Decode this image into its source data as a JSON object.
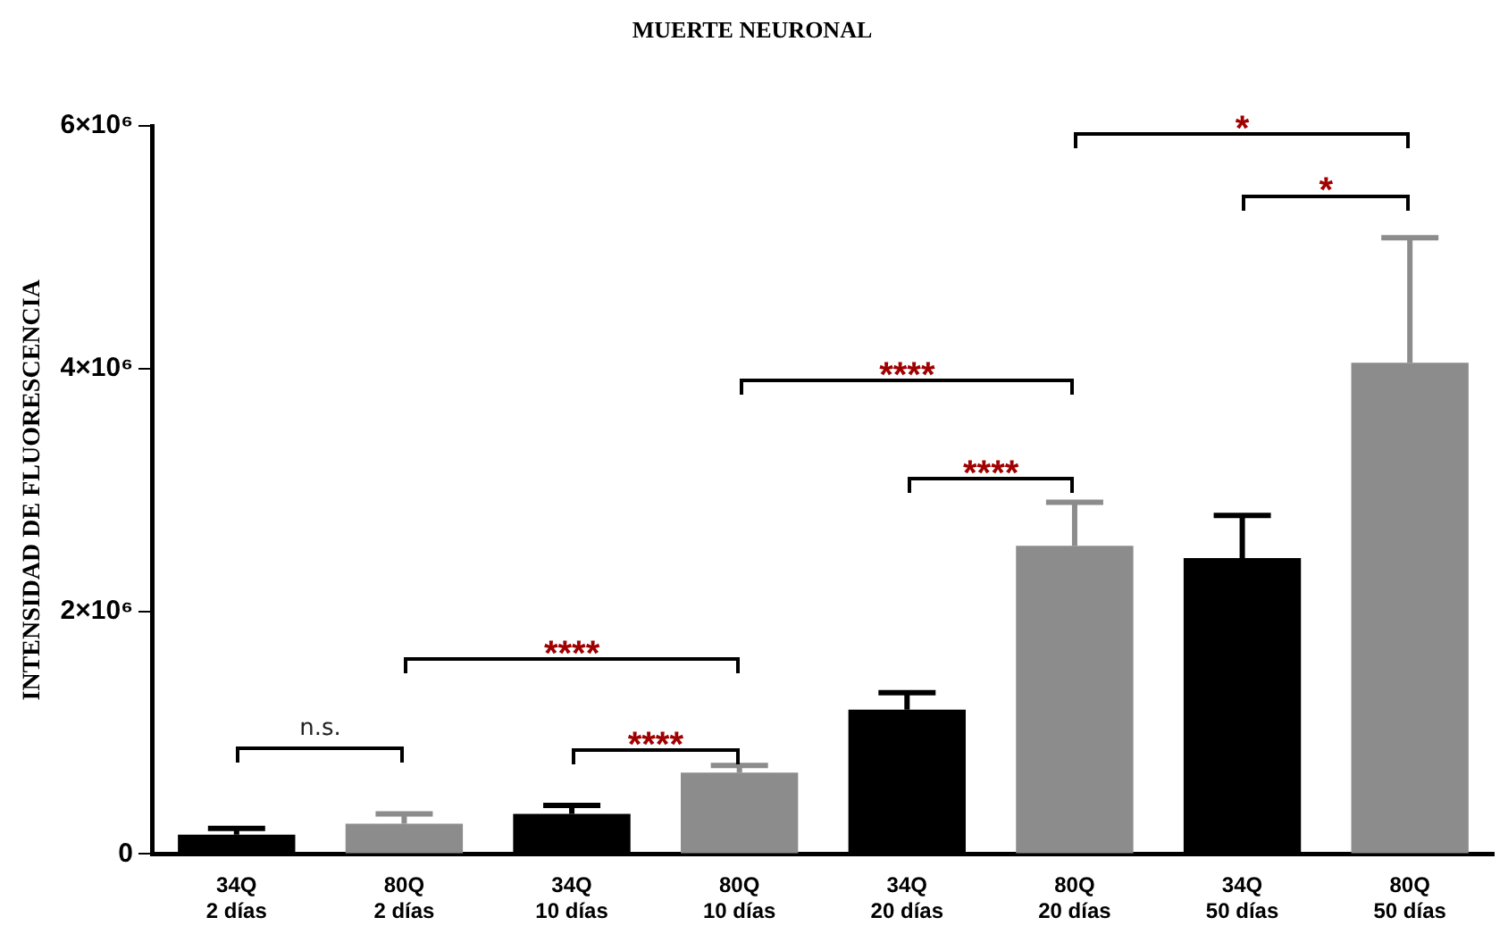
{
  "chart_data": {
    "type": "bar",
    "title": "MUERTE NEURONAL",
    "ylabel": "INTENSIDAD DE FLUORESCENCIA",
    "categories": [
      "34Q\n2 días",
      "80Q\n2 días",
      "34Q\n10 días",
      "80Q\n10 días",
      "34Q\n20 días",
      "80Q\n20 días",
      "34Q\n50 días",
      "80Q\n50 días"
    ],
    "values": [
      160000,
      250000,
      330000,
      670000,
      1190000,
      2540000,
      2440000,
      4050000
    ],
    "errors": [
      [
        160000,
        210000
      ],
      [
        250000,
        330000
      ],
      [
        330000,
        400000
      ],
      [
        670000,
        730000
      ],
      [
        1190000,
        1330000
      ],
      [
        2540000,
        2900000
      ],
      [
        2440000,
        2790000
      ],
      [
        4050000,
        5080000
      ]
    ],
    "colors": [
      "#000000",
      "#8c8c8c",
      "#000000",
      "#8c8c8c",
      "#000000",
      "#8c8c8c",
      "#000000",
      "#8c8c8c"
    ],
    "ylim": [
      0,
      6000000
    ],
    "yticks": [
      0,
      {
        "value": 2000000,
        "label": "2×10⁶"
      },
      {
        "value": 4000000,
        "label": "4×10⁶"
      },
      {
        "value": 6000000,
        "label": "6×10⁶"
      }
    ],
    "grid": false,
    "legend": false,
    "annotations": [
      "n.s.",
      "****",
      "****",
      "****",
      "****",
      "*",
      "*"
    ]
  }
}
